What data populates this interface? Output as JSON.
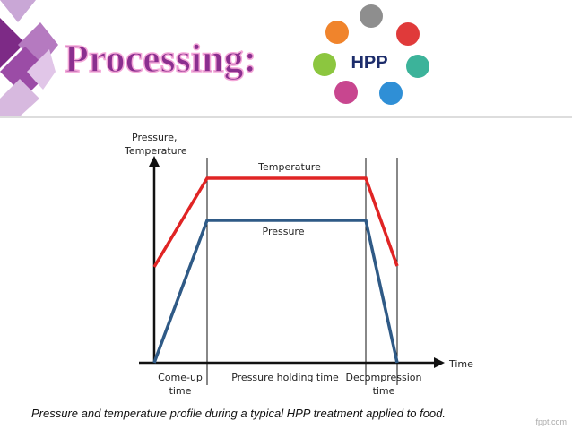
{
  "header": {
    "title": "Processing:",
    "logo": {
      "label": "HPP"
    }
  },
  "diagram": {
    "y_axis_label": [
      "Pressure,",
      "Temperature"
    ],
    "x_axis_label": "Time",
    "curves": [
      {
        "label": "Temperature"
      },
      {
        "label": "Pressure"
      }
    ],
    "phases": [
      [
        "Come-up",
        "time"
      ],
      [
        "Pressure holding time"
      ],
      [
        "Decompression",
        "time"
      ]
    ]
  },
  "caption": "Pressure and temperature profile during a typical HPP treatment applied to food.",
  "footer": "fppt.com"
}
